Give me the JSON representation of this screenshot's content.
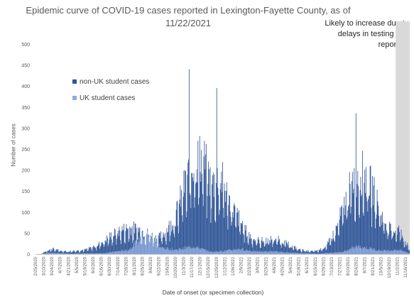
{
  "chart_data": {
    "type": "bar",
    "title": "Epidemic curve of COVID-19 cases reported in Lexington-Fayette County, as of 11/22/2021",
    "xlabel": "Date of onset (or specimen collection)",
    "ylabel": "Number of cases",
    "ylim": [
      0,
      500
    ],
    "yticks": [
      0,
      50,
      100,
      150,
      200,
      250,
      300,
      350,
      400,
      450,
      500
    ],
    "stacked": true,
    "grid": false,
    "legend_position": "upper-left",
    "shaded_region": {
      "label": "Likely to increase due to delays in testing and reporting",
      "start": "10/30/2021",
      "end": "11/22/2021"
    },
    "x_start": "2/25/2020",
    "x_end": "11/22/2021",
    "x_tick_labels": [
      "2/25/2020",
      "3/10/2020",
      "3/24/2020",
      "4/7/2020",
      "4/21/2020",
      "5/5/2020",
      "5/19/2020",
      "6/2/2020",
      "6/16/2020",
      "6/30/2020",
      "7/14/2020",
      "7/28/2020",
      "8/11/2020",
      "8/25/2020",
      "9/8/2020",
      "9/22/2020",
      "10/6/2020",
      "10/20/2020",
      "11/3/2020",
      "11/17/2020",
      "12/1/2020",
      "12/15/2020",
      "12/29/2020",
      "1/12/2021",
      "1/26/2021",
      "2/9/2021",
      "2/23/2021",
      "3/9/2021",
      "3/23/2021",
      "4/6/2021",
      "4/20/2021",
      "5/4/2021",
      "5/18/2021",
      "6/1/2021",
      "6/15/2021",
      "6/29/2021",
      "7/13/2021",
      "7/27/2021",
      "8/10/2021",
      "8/24/2021",
      "9/7/2021",
      "9/21/2021",
      "10/5/2021",
      "10/19/2021",
      "11/2/2021",
      "11/16/2021"
    ],
    "series": [
      {
        "name": "non-UK student cases",
        "color": "#2f5597",
        "points": [
          [
            "3/5/2020",
            0
          ],
          [
            "3/15/2020",
            8
          ],
          [
            "3/25/2020",
            12
          ],
          [
            "4/5/2020",
            8
          ],
          [
            "4/20/2020",
            6
          ],
          [
            "5/5/2020",
            8
          ],
          [
            "5/20/2020",
            10
          ],
          [
            "6/5/2020",
            18
          ],
          [
            "6/20/2020",
            30
          ],
          [
            "7/5/2020",
            45
          ],
          [
            "7/20/2020",
            55
          ],
          [
            "8/5/2020",
            60
          ],
          [
            "8/20/2020",
            55
          ],
          [
            "9/5/2020",
            45
          ],
          [
            "9/20/2020",
            35
          ],
          [
            "10/5/2020",
            55
          ],
          [
            "10/20/2020",
            85
          ],
          [
            "11/5/2020",
            160
          ],
          [
            "11/20/2020",
            210
          ],
          [
            "12/5/2020",
            220
          ],
          [
            "12/20/2020",
            160
          ],
          [
            "1/5/2021",
            175
          ],
          [
            "1/20/2021",
            120
          ],
          [
            "2/5/2021",
            80
          ],
          [
            "2/20/2021",
            45
          ],
          [
            "3/5/2021",
            32
          ],
          [
            "3/20/2021",
            30
          ],
          [
            "4/5/2021",
            35
          ],
          [
            "4/20/2021",
            30
          ],
          [
            "5/5/2021",
            18
          ],
          [
            "5/20/2021",
            10
          ],
          [
            "6/5/2021",
            6
          ],
          [
            "6/20/2021",
            8
          ],
          [
            "7/5/2021",
            20
          ],
          [
            "7/20/2021",
            55
          ],
          [
            "8/5/2021",
            120
          ],
          [
            "8/20/2021",
            175
          ],
          [
            "9/5/2021",
            185
          ],
          [
            "9/20/2021",
            150
          ],
          [
            "10/5/2021",
            90
          ],
          [
            "10/20/2021",
            55
          ],
          [
            "11/5/2021",
            55
          ],
          [
            "11/22/2021",
            10
          ]
        ],
        "labeled_peaks": [
          [
            "11/12/2020",
            440
          ],
          [
            "12/29/2020",
            395
          ],
          [
            "8/23/2021",
            335
          ]
        ]
      },
      {
        "name": "UK student cases",
        "color": "#8faadc",
        "points": [
          [
            "3/5/2020",
            0
          ],
          [
            "3/20/2020",
            3
          ],
          [
            "4/20/2020",
            1
          ],
          [
            "6/20/2020",
            2
          ],
          [
            "8/1/2020",
            10
          ],
          [
            "8/20/2020",
            35
          ],
          [
            "9/1/2020",
            50
          ],
          [
            "9/10/2020",
            40
          ],
          [
            "9/25/2020",
            15
          ],
          [
            "10/20/2020",
            10
          ],
          [
            "11/20/2020",
            18
          ],
          [
            "12/20/2020",
            5
          ],
          [
            "1/15/2021",
            8
          ],
          [
            "2/5/2021",
            12
          ],
          [
            "3/5/2021",
            6
          ],
          [
            "4/5/2021",
            6
          ],
          [
            "5/5/2021",
            3
          ],
          [
            "6/20/2021",
            1
          ],
          [
            "8/1/2021",
            5
          ],
          [
            "8/25/2021",
            18
          ],
          [
            "9/10/2021",
            15
          ],
          [
            "10/5/2021",
            8
          ],
          [
            "11/5/2021",
            10
          ],
          [
            "11/22/2021",
            2
          ]
        ]
      }
    ]
  }
}
